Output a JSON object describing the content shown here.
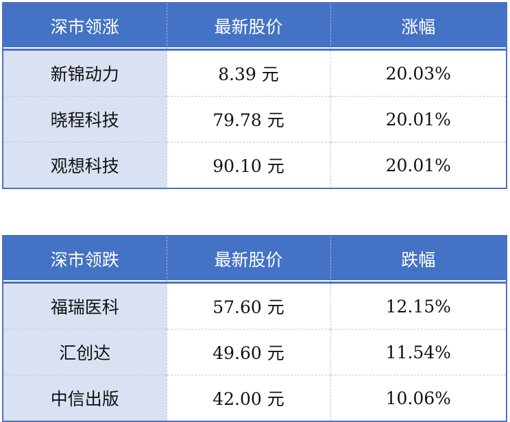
{
  "tables": [
    {
      "headers": [
        "深市领涨",
        "最新股价",
        "涨幅"
      ],
      "rows": [
        [
          "新锦动力",
          "8.39 元",
          "20.03%"
        ],
        [
          "晓程科技",
          "79.78 元",
          "20.01%"
        ],
        [
          "观想科技",
          "90.10 元",
          "20.01%"
        ]
      ]
    },
    {
      "headers": [
        "深市领跌",
        "最新股价",
        "跌幅"
      ],
      "rows": [
        [
          "福瑞医科",
          "57.60 元",
          "12.15%"
        ],
        [
          "汇创达",
          "49.60 元",
          "11.54%"
        ],
        [
          "中信出版",
          "42.00 元",
          "10.06%"
        ]
      ]
    }
  ],
  "colors": {
    "header": "#4472c4",
    "first_column": "#d9e1f2"
  }
}
